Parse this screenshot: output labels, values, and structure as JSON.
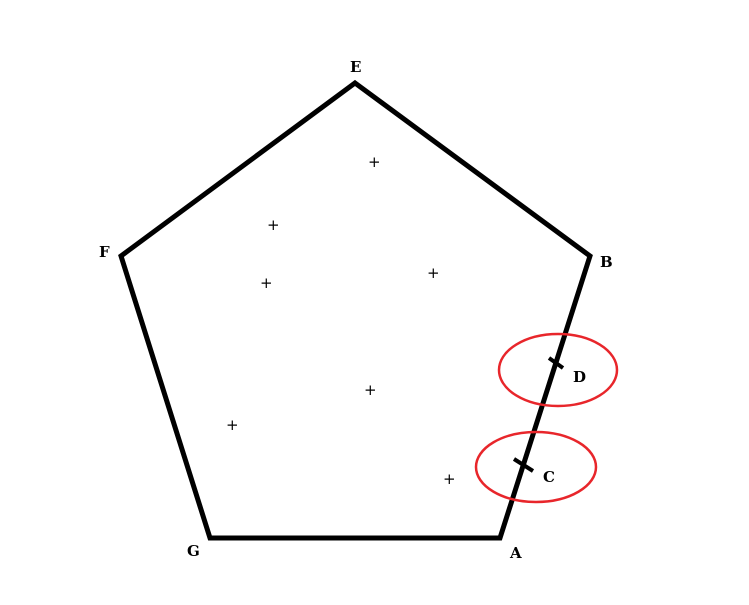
{
  "diagram": {
    "vertices": {
      "E": "E",
      "B": "B",
      "F": "F",
      "G": "G",
      "A": "A",
      "C": "C",
      "D": "D"
    },
    "interior_marker": "+",
    "colors": {
      "stroke": "#000000",
      "highlight": "#e8262b",
      "background": "#ffffff"
    }
  }
}
